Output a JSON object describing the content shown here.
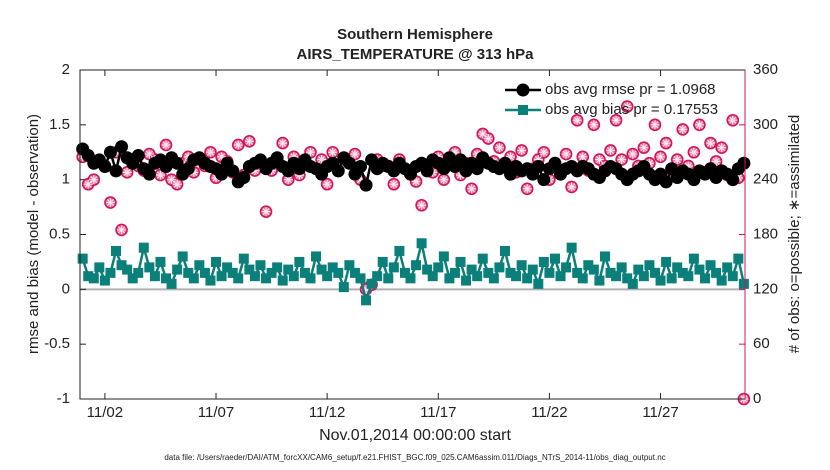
{
  "chart_data": {
    "type": "line",
    "title": "Southern Hemisphere",
    "subtitle": "AIRS_TEMPERATURE @ 313 hPa",
    "xlabel": "Nov.01,2014 00:00:00 start",
    "ylabel": "rmse and bias (model - observation)",
    "y2label": "# of obs: o=possible; ∗=assimilated",
    "footnote": "data file: /Users/raeder/DAI/ATM_forcXX/CAM6_setup/f.e21.FHIST_BGC.f09_025.CAM6assim.011/Diags_NTrS_2014-11/obs_diag_output.nc",
    "legend": "northeast",
    "xlim": [
      -0.12,
      29.8
    ],
    "xticks": [
      {
        "value": 1,
        "label": "11/02"
      },
      {
        "value": 6,
        "label": "11/07"
      },
      {
        "value": 11,
        "label": "11/12"
      },
      {
        "value": 16,
        "label": "11/17"
      },
      {
        "value": 21,
        "label": "11/22"
      },
      {
        "value": 26,
        "label": "11/27"
      }
    ],
    "ylim": [
      -1,
      2
    ],
    "yticks": [
      -1,
      -0.5,
      0,
      0.5,
      1,
      1.5,
      2
    ],
    "y2lim": [
      0,
      360
    ],
    "y2ticks": [
      0,
      60,
      120,
      180,
      240,
      300,
      360
    ],
    "y2color": "#d4145a",
    "x": [
      0,
      0.25,
      0.5,
      0.75,
      1,
      1.25,
      1.5,
      1.75,
      2,
      2.25,
      2.5,
      2.75,
      3,
      3.25,
      3.5,
      3.75,
      4,
      4.25,
      4.5,
      4.75,
      5,
      5.25,
      5.5,
      5.75,
      6,
      6.25,
      6.5,
      6.75,
      7,
      7.25,
      7.5,
      7.75,
      8,
      8.25,
      8.5,
      8.75,
      9,
      9.25,
      9.5,
      9.75,
      10,
      10.25,
      10.5,
      10.75,
      11,
      11.25,
      11.5,
      11.75,
      12,
      12.25,
      12.5,
      12.75,
      13,
      13.25,
      13.5,
      13.75,
      14,
      14.25,
      14.5,
      14.75,
      15,
      15.25,
      15.5,
      15.75,
      16,
      16.25,
      16.5,
      16.75,
      17,
      17.25,
      17.5,
      17.75,
      18,
      18.25,
      18.5,
      18.75,
      19,
      19.25,
      19.5,
      19.75,
      20,
      20.25,
      20.5,
      20.75,
      21,
      21.25,
      21.5,
      21.75,
      22,
      22.25,
      22.5,
      22.75,
      23,
      23.25,
      23.5,
      23.75,
      24,
      24.25,
      24.5,
      24.75,
      25,
      25.25,
      25.5,
      25.75,
      26,
      26.25,
      26.5,
      26.75,
      27,
      27.25,
      27.5,
      27.75,
      28,
      28.25,
      28.5,
      28.75,
      29,
      29.25,
      29.5,
      29.75
    ],
    "series": [
      {
        "name": "obs avg rmse pr = 1.0968",
        "color": "#000000",
        "marker": "circle",
        "values": [
          1.28,
          1.22,
          1.15,
          1.18,
          1.12,
          1.25,
          1.08,
          1.3,
          1.2,
          1.15,
          1.22,
          1.1,
          1.05,
          1.15,
          1.18,
          1.12,
          1.2,
          1.15,
          1.05,
          1.1,
          1.18,
          1.2,
          1.15,
          1.12,
          1.1,
          1.05,
          1.15,
          1.08,
          0.98,
          1.02,
          1.12,
          1.15,
          1.18,
          1.1,
          1.15,
          1.2,
          1.12,
          1.08,
          1.15,
          1.1,
          1.18,
          1.12,
          1.1,
          1.05,
          1.12,
          1.15,
          1.08,
          1.2,
          1.15,
          1.05,
          1.12,
          0.95,
          1.18,
          1.1,
          1.15,
          1.12,
          1.08,
          1.15,
          1.1,
          1.05,
          1.12,
          1.15,
          1.08,
          1.18,
          1.15,
          1.1,
          1.2,
          1.12,
          1.18,
          1.08,
          1.15,
          1.1,
          1.2,
          1.15,
          1.12,
          1.1,
          1.15,
          1.05,
          1.12,
          1.08,
          1.1,
          1.05,
          1.12,
          1.0,
          1.1,
          1.15,
          1.05,
          1.1,
          1.12,
          1.08,
          1.12,
          1.1,
          1.05,
          1.02,
          1.08,
          1.12,
          1.1,
          1.05,
          1.0,
          1.05,
          1.08,
          1.12,
          1.05,
          1.0,
          1.05,
          0.98,
          1.1,
          1.02,
          1.08,
          1.05,
          1.0,
          1.08,
          1.05,
          1.1,
          1.02,
          1.08,
          1.05,
          1.0,
          1.1,
          1.15
        ]
      },
      {
        "name": "obs avg bias pr = 0.17553",
        "color": "#0b7f7a",
        "marker": "square",
        "values": [
          0.28,
          0.12,
          0.1,
          0.2,
          0.08,
          0.15,
          0.35,
          0.22,
          0.18,
          0.1,
          0.15,
          0.38,
          0.2,
          0.12,
          0.25,
          0.1,
          0.05,
          0.18,
          0.3,
          0.15,
          0.1,
          0.22,
          0.15,
          0.08,
          0.25,
          0.12,
          0.2,
          0.15,
          0.1,
          0.28,
          0.18,
          0.12,
          0.22,
          0.1,
          0.15,
          0.2,
          0.08,
          0.18,
          0.12,
          0.25,
          0.15,
          0.1,
          0.3,
          0.18,
          0.12,
          0.2,
          0.15,
          0.02,
          0.22,
          0.15,
          0.1,
          -0.1,
          0.05,
          0.12,
          0.25,
          0.1,
          0.2,
          0.35,
          0.15,
          0.1,
          0.22,
          0.42,
          0.18,
          0.12,
          0.2,
          0.3,
          0.1,
          0.15,
          0.25,
          0.08,
          0.18,
          0.12,
          0.28,
          0.15,
          0.1,
          0.2,
          0.35,
          0.15,
          0.12,
          0.22,
          0.1,
          0.18,
          0.05,
          0.25,
          0.15,
          0.28,
          0.12,
          0.2,
          0.38,
          0.15,
          0.1,
          0.22,
          0.18,
          0.08,
          0.3,
          0.15,
          0.12,
          0.2,
          0.1,
          0.05,
          0.18,
          0.12,
          0.22,
          0.15,
          0.08,
          0.25,
          0.1,
          0.2,
          0.15,
          0.12,
          0.28,
          0.18,
          0.1,
          0.22,
          0.15,
          0.08,
          0.2,
          0.12,
          0.28,
          0.05
        ]
      },
      {
        "axis": "y2",
        "color": "#d4145a",
        "marker": "o",
        "values": [
          265,
          235,
          240,
          260,
          255,
          215,
          270,
          185,
          248,
          260,
          255,
          250,
          268,
          262,
          245,
          278,
          240,
          235,
          258,
          265,
          248,
          262,
          255,
          270,
          242,
          265,
          260,
          248,
          278,
          245,
          282,
          250,
          260,
          205,
          250,
          262,
          280,
          240,
          265,
          245,
          258,
          270,
          252,
          262,
          235,
          270,
          250,
          262,
          258,
          268,
          240,
          120,
          125,
          262,
          255,
          255,
          235,
          262,
          252,
          250,
          238,
          212,
          255,
          248,
          265,
          240,
          260,
          270,
          245,
          258,
          230,
          268,
          290,
          285,
          260,
          275,
          255,
          265,
          248,
          272,
          230,
          252,
          262,
          270,
          240,
          258,
          250,
          268,
          232,
          305,
          265,
          250,
          300,
          262,
          255,
          272,
          305,
          262,
          320,
          268,
          255,
          275,
          258,
          300,
          265,
          280,
          250,
          262,
          295,
          255,
          270,
          300,
          248,
          280,
          260,
          275,
          245,
          305,
          242,
          0
        ]
      },
      {
        "axis": "y2",
        "color": "#d4145a",
        "marker": "*",
        "values": [
          265,
          235,
          240,
          260,
          255,
          215,
          270,
          185,
          248,
          260,
          255,
          250,
          268,
          262,
          245,
          278,
          240,
          235,
          258,
          265,
          248,
          262,
          255,
          270,
          242,
          265,
          260,
          248,
          278,
          245,
          282,
          250,
          260,
          205,
          250,
          262,
          280,
          240,
          265,
          245,
          258,
          270,
          252,
          262,
          235,
          270,
          250,
          262,
          258,
          268,
          240,
          120,
          125,
          262,
          255,
          255,
          235,
          262,
          252,
          250,
          238,
          212,
          255,
          248,
          265,
          240,
          260,
          270,
          245,
          258,
          230,
          268,
          290,
          285,
          260,
          275,
          255,
          265,
          248,
          272,
          230,
          252,
          262,
          270,
          240,
          258,
          250,
          268,
          232,
          305,
          265,
          250,
          300,
          262,
          255,
          272,
          305,
          262,
          320,
          268,
          255,
          275,
          258,
          300,
          265,
          280,
          250,
          262,
          295,
          255,
          270,
          300,
          248,
          280,
          260,
          275,
          245,
          305,
          242,
          0
        ]
      }
    ]
  }
}
